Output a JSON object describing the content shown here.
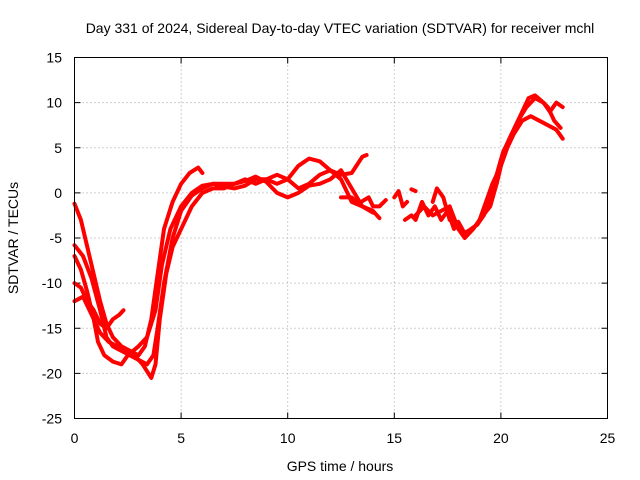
{
  "chart_data": {
    "type": "line",
    "title": "Day 331 of 2024, Sidereal Day-to-day VTEC variation (SDTVAR) for receiver mchl",
    "xlabel": "GPS time / hours",
    "ylabel": "SDTVAR / TECUs",
    "xlim": [
      0,
      25
    ],
    "ylim": [
      -25,
      15
    ],
    "x_ticks": [
      0,
      5,
      10,
      15,
      20,
      25
    ],
    "x_tick_labels": [
      "0",
      "5",
      "10",
      "15",
      "20",
      "25"
    ],
    "y_ticks": [
      15,
      10,
      5,
      0,
      -5,
      -10,
      -15,
      -20,
      -25
    ],
    "y_tick_labels": [
      "15",
      "10",
      "5",
      "0",
      "-5",
      "-10",
      "-15",
      "-20",
      "-25"
    ],
    "grid": true,
    "color": "#ff0000",
    "series": [
      {
        "name": "trace-1",
        "points": [
          [
            0.0,
            -1.2
          ],
          [
            0.3,
            -3
          ],
          [
            0.6,
            -6
          ],
          [
            0.9,
            -9
          ],
          [
            1.2,
            -12
          ],
          [
            1.5,
            -14.5
          ],
          [
            1.8,
            -16
          ],
          [
            2.2,
            -17
          ],
          [
            2.6,
            -17.5
          ],
          [
            3.0,
            -18
          ],
          [
            3.3,
            -17
          ],
          [
            3.6,
            -14
          ],
          [
            3.9,
            -9
          ],
          [
            4.2,
            -4
          ],
          [
            4.6,
            -1
          ],
          [
            5.0,
            1
          ],
          [
            5.4,
            2.2
          ],
          [
            5.8,
            2.8
          ],
          [
            6.0,
            2.2
          ]
        ]
      },
      {
        "name": "trace-2",
        "points": [
          [
            0.0,
            -5.8
          ],
          [
            0.4,
            -7
          ],
          [
            0.8,
            -9.5
          ],
          [
            1.2,
            -13
          ],
          [
            1.5,
            -16
          ],
          [
            1.8,
            -17
          ],
          [
            2.2,
            -17.5
          ],
          [
            2.6,
            -18
          ],
          [
            3.0,
            -18.5
          ],
          [
            3.4,
            -19
          ],
          [
            3.7,
            -18
          ],
          [
            3.9,
            -15
          ],
          [
            4.2,
            -10
          ],
          [
            4.6,
            -5
          ],
          [
            5.0,
            -2
          ],
          [
            5.5,
            -0.3
          ],
          [
            6.0,
            0.5
          ],
          [
            6.5,
            1
          ],
          [
            7.0,
            0.7
          ],
          [
            7.5,
            0.5
          ],
          [
            8.0,
            0.8
          ],
          [
            8.5,
            1.5
          ],
          [
            9.0,
            1.5
          ],
          [
            9.5,
            1
          ],
          [
            10.0,
            1.5
          ],
          [
            10.5,
            3
          ],
          [
            11.0,
            3.8
          ],
          [
            11.5,
            3.5
          ],
          [
            12.0,
            2.5
          ],
          [
            12.5,
            2
          ],
          [
            13.0,
            2.2
          ],
          [
            13.5,
            4
          ],
          [
            13.7,
            4.2
          ]
        ]
      },
      {
        "name": "trace-3",
        "points": [
          [
            0.0,
            -7
          ],
          [
            0.3,
            -8.5
          ],
          [
            0.6,
            -11
          ],
          [
            0.9,
            -14
          ],
          [
            1.1,
            -16.5
          ],
          [
            1.4,
            -18
          ],
          [
            1.8,
            -18.7
          ],
          [
            2.2,
            -19
          ],
          [
            2.5,
            -18
          ],
          [
            3.0,
            -17
          ],
          [
            3.4,
            -16
          ],
          [
            3.8,
            -13
          ],
          [
            4.1,
            -8
          ],
          [
            4.5,
            -4
          ],
          [
            5.0,
            -1.5
          ],
          [
            5.5,
            0
          ],
          [
            6.0,
            0.8
          ],
          [
            6.5,
            1
          ],
          [
            7.0,
            1
          ],
          [
            7.5,
            1
          ],
          [
            8.0,
            1.3
          ],
          [
            8.5,
            1.8
          ],
          [
            9.0,
            1.2
          ],
          [
            9.5,
            0
          ],
          [
            10.0,
            -0.5
          ],
          [
            10.5,
            0
          ],
          [
            11.0,
            0.8
          ],
          [
            11.5,
            1
          ],
          [
            12.0,
            1.5
          ],
          [
            12.5,
            2.5
          ],
          [
            13.0,
            0.5
          ],
          [
            13.5,
            -1.5
          ],
          [
            14.0,
            -2
          ],
          [
            14.3,
            -2.8
          ]
        ]
      },
      {
        "name": "trace-4",
        "points": [
          [
            0.0,
            -10
          ],
          [
            0.3,
            -10.5
          ],
          [
            0.6,
            -12
          ],
          [
            0.9,
            -13
          ],
          [
            1.2,
            -14.5
          ],
          [
            1.5,
            -15
          ],
          [
            1.8,
            -14
          ],
          [
            2.1,
            -13.5
          ],
          [
            2.3,
            -13
          ]
        ]
      },
      {
        "name": "trace-5",
        "points": [
          [
            0.0,
            -12
          ],
          [
            0.4,
            -11.5
          ],
          [
            0.8,
            -13.5
          ],
          [
            1.2,
            -15.5
          ],
          [
            1.6,
            -16.5
          ],
          [
            2.0,
            -17
          ],
          [
            2.4,
            -17.5
          ],
          [
            2.8,
            -18
          ],
          [
            3.2,
            -19
          ],
          [
            3.6,
            -20.5
          ],
          [
            3.8,
            -19
          ],
          [
            4.0,
            -14
          ],
          [
            4.3,
            -9
          ],
          [
            4.6,
            -6
          ],
          [
            5.0,
            -4
          ],
          [
            5.5,
            -1.5
          ],
          [
            6.0,
            0
          ],
          [
            6.5,
            0.5
          ],
          [
            7.0,
            0.5
          ],
          [
            7.5,
            1
          ],
          [
            8.0,
            1.5
          ],
          [
            8.5,
            1
          ],
          [
            9.0,
            1.5
          ],
          [
            9.5,
            2
          ],
          [
            10.0,
            1.5
          ],
          [
            10.5,
            0.5
          ],
          [
            11.0,
            1
          ],
          [
            11.5,
            2
          ],
          [
            12.0,
            2.5
          ],
          [
            12.5,
            1.5
          ],
          [
            13.0,
            -1
          ],
          [
            13.5,
            -1.5
          ],
          [
            14.0,
            -2.2
          ]
        ]
      },
      {
        "name": "trace-6",
        "points": [
          [
            12.5,
            -0.5
          ],
          [
            13.0,
            -0.5
          ],
          [
            13.3,
            -1.2
          ],
          [
            13.8,
            -0.5
          ],
          [
            14.0,
            -1.5
          ],
          [
            14.3,
            -1.5
          ],
          [
            14.6,
            -0.8
          ]
        ]
      },
      {
        "name": "trace-7",
        "points": [
          [
            15.0,
            -0.5
          ],
          [
            15.2,
            0.2
          ],
          [
            15.4,
            -1.5
          ],
          [
            15.6,
            -1
          ]
        ]
      },
      {
        "name": "trace-8",
        "points": [
          [
            15.8,
            0.4
          ],
          [
            16.0,
            0.2
          ]
        ]
      },
      {
        "name": "trace-9",
        "points": [
          [
            15.5,
            -3
          ],
          [
            15.8,
            -2.5
          ],
          [
            16.0,
            -3
          ],
          [
            16.3,
            -1
          ],
          [
            16.6,
            -2.5
          ],
          [
            16.9,
            -1.5
          ],
          [
            17.2,
            -3
          ],
          [
            17.5,
            -2
          ],
          [
            17.8,
            -4
          ],
          [
            18.0,
            -3.2
          ],
          [
            18.3,
            -4.5
          ],
          [
            18.6,
            -4
          ],
          [
            18.9,
            -3.5
          ],
          [
            19.2,
            -2
          ],
          [
            19.5,
            0
          ],
          [
            19.8,
            1.5
          ]
        ]
      },
      {
        "name": "trace-10",
        "points": [
          [
            16.0,
            -2.5
          ],
          [
            16.4,
            -1.5
          ],
          [
            16.8,
            -2.5
          ],
          [
            17.2,
            -2
          ],
          [
            17.6,
            -1.5
          ],
          [
            18.0,
            -4
          ],
          [
            18.3,
            -5
          ],
          [
            18.7,
            -4
          ],
          [
            19.0,
            -3
          ],
          [
            19.3,
            -1
          ],
          [
            19.6,
            1
          ],
          [
            20.0,
            3
          ]
        ]
      },
      {
        "name": "trace-11",
        "points": [
          [
            16.8,
            -1
          ],
          [
            17.0,
            0.5
          ],
          [
            17.3,
            -0.5
          ],
          [
            17.6,
            -3
          ],
          [
            17.9,
            -3.5
          ],
          [
            18.2,
            -4.5
          ],
          [
            18.5,
            -4.2
          ],
          [
            18.9,
            -3.5
          ],
          [
            19.2,
            -2.5
          ],
          [
            19.5,
            -0.5
          ],
          [
            19.8,
            1
          ],
          [
            20.1,
            4
          ],
          [
            20.4,
            6
          ],
          [
            20.8,
            8
          ],
          [
            21.2,
            9.5
          ],
          [
            21.6,
            10.5
          ],
          [
            22.0,
            10
          ],
          [
            22.3,
            9
          ],
          [
            22.6,
            10
          ],
          [
            22.9,
            9.5
          ]
        ]
      },
      {
        "name": "trace-12",
        "points": [
          [
            19.0,
            -3
          ],
          [
            19.5,
            -1.5
          ],
          [
            19.8,
            1
          ],
          [
            20.0,
            3
          ],
          [
            20.3,
            5
          ],
          [
            20.6,
            6.5
          ],
          [
            21.0,
            8
          ],
          [
            21.4,
            8.5
          ],
          [
            21.8,
            8
          ],
          [
            22.2,
            7.5
          ],
          [
            22.6,
            7
          ],
          [
            22.9,
            6
          ]
        ]
      },
      {
        "name": "trace-13",
        "points": [
          [
            19.8,
            2
          ],
          [
            20.1,
            4.5
          ],
          [
            20.5,
            6.5
          ],
          [
            20.9,
            8.5
          ],
          [
            21.3,
            10.5
          ],
          [
            21.6,
            10.8
          ],
          [
            21.9,
            10.2
          ],
          [
            22.2,
            9.5
          ],
          [
            22.5,
            8
          ],
          [
            22.8,
            7.2
          ]
        ]
      }
    ]
  }
}
